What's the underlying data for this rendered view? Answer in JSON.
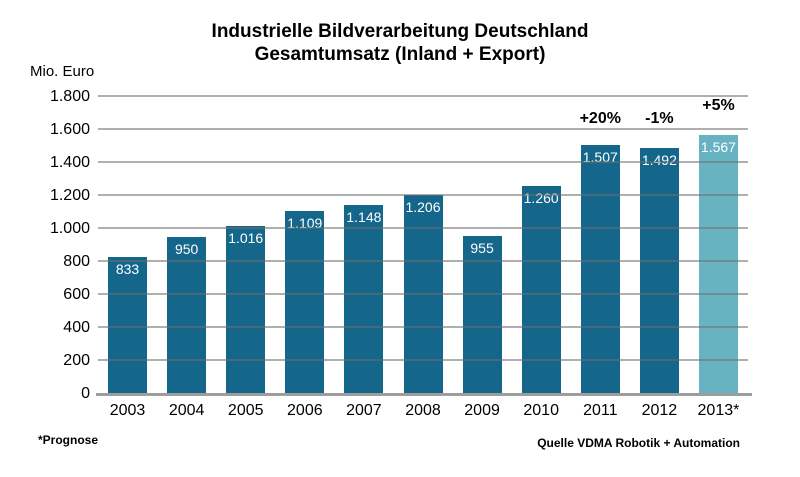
{
  "title": {
    "line1": "Industrielle Bildverarbeitung Deutschland",
    "line2": "Gesamtumsatz (Inland + Export)"
  },
  "y_axis_unit": "Mio. Euro",
  "footnote": "*Prognose",
  "source": "Quelle VDMA Robotik + Automation",
  "colors": {
    "bar": "#14678b",
    "bar_forecast": "#68b3c2",
    "value_label": "#ffffff",
    "gridline": "#a8a8a8",
    "baseline": "#9d9d9d",
    "text": "#000000"
  },
  "chart_data": {
    "type": "bar",
    "title": "Industrielle Bildverarbeitung Deutschland Gesamtumsatz (Inland + Export)",
    "ylabel": "Mio. Euro",
    "xlabel": "",
    "categories": [
      "2003",
      "2004",
      "2005",
      "2006",
      "2007",
      "2008",
      "2009",
      "2010",
      "2011",
      "2012",
      "2013*"
    ],
    "values": [
      833,
      950,
      1016,
      1109,
      1148,
      1206,
      955,
      1260,
      1507,
      1492,
      1567
    ],
    "value_labels": [
      "833",
      "950",
      "1.016",
      "1.109",
      "1.148",
      "1.206",
      "955",
      "1.260",
      "1.507",
      "1.492",
      "1.567"
    ],
    "ylim": [
      0,
      1800
    ],
    "ytick_step": 200,
    "ytick_labels": [
      "0",
      "200",
      "400",
      "600",
      "800",
      "1.000",
      "1.200",
      "1.400",
      "1.600",
      "1.800"
    ],
    "grid": true,
    "legend": false,
    "forecast_index": 10,
    "annotations": [
      {
        "index": 8,
        "category": "2011",
        "label": "+20%"
      },
      {
        "index": 9,
        "category": "2012",
        "label": "-1%"
      },
      {
        "index": 10,
        "category": "2013*",
        "label": "+5%"
      }
    ]
  }
}
